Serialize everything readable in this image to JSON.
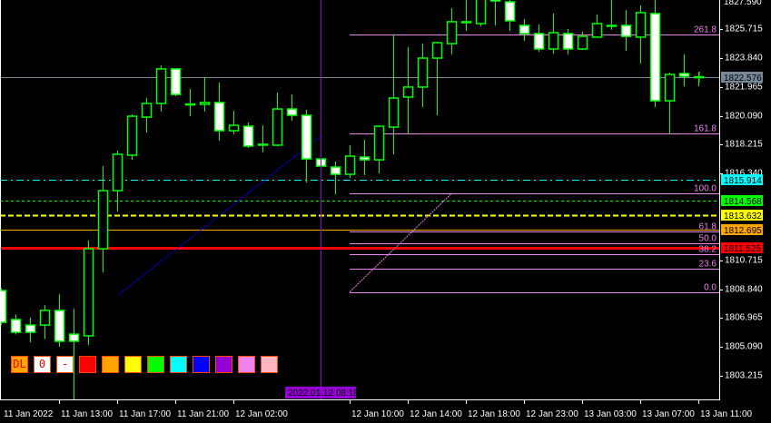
{
  "chart_data": {
    "type": "candlestick",
    "symbol_timeframe": "",
    "price_axis": {
      "top_label": "1827.590",
      "ticks": [
        1825.715,
        1823.84,
        1821.965,
        1820.09,
        1818.215,
        1816.34,
        1810.715,
        1808.84,
        1806.965,
        1805.09,
        1803.215
      ],
      "tick_labels": [
        "1825.715",
        "1823.840",
        "1821.965",
        "1820.090",
        "1818.215",
        "1816.340",
        "1810.715",
        "1808.840",
        "1806.965",
        "1805.090",
        "1803.215"
      ]
    },
    "time_axis": {
      "labels": [
        "11 Jan 2022",
        "11 Jan 13:00",
        "11 Jan 17:00",
        "11 Jan 21:00",
        "12 Jan 02:00",
        "12 Jan 10:00",
        "12 Jan 14:00",
        "12 Jan 18:00",
        "12 Jan 23:00",
        "13 Jan 03:00",
        "13 Jan 07:00",
        "13 Jan 11:00"
      ]
    },
    "candles": [
      {
        "o": 1808.75,
        "h": 1808.9,
        "l": 1806.5,
        "c": 1806.69
      },
      {
        "o": 1806.87,
        "h": 1807.2,
        "l": 1805.9,
        "c": 1806.04
      },
      {
        "o": 1806.51,
        "h": 1807.0,
        "l": 1805.4,
        "c": 1806.04
      },
      {
        "o": 1806.51,
        "h": 1807.8,
        "l": 1805.6,
        "c": 1807.46
      },
      {
        "o": 1807.46,
        "h": 1808.5,
        "l": 1805.1,
        "c": 1805.46
      },
      {
        "o": 1805.92,
        "h": 1807.57,
        "l": 1801.69,
        "c": 1805.46
      },
      {
        "o": 1805.81,
        "h": 1811.99,
        "l": 1805.22,
        "c": 1811.46
      },
      {
        "o": 1811.46,
        "h": 1816.82,
        "l": 1809.93,
        "c": 1815.23
      },
      {
        "o": 1815.23,
        "h": 1817.82,
        "l": 1813.88,
        "c": 1817.59
      },
      {
        "o": 1817.53,
        "h": 1820.18,
        "l": 1817.23,
        "c": 1820.06
      },
      {
        "o": 1820.0,
        "h": 1821.24,
        "l": 1819.0,
        "c": 1820.89
      },
      {
        "o": 1820.89,
        "h": 1823.36,
        "l": 1820.36,
        "c": 1823.13
      },
      {
        "o": 1823.13,
        "h": 1823.13,
        "l": 1821.36,
        "c": 1821.47
      },
      {
        "o": 1820.83,
        "h": 1821.83,
        "l": 1820.06,
        "c": 1820.85
      },
      {
        "o": 1820.83,
        "h": 1822.59,
        "l": 1820.36,
        "c": 1820.95
      },
      {
        "o": 1820.95,
        "h": 1822.24,
        "l": 1818.47,
        "c": 1819.12
      },
      {
        "o": 1819.12,
        "h": 1820.41,
        "l": 1818.88,
        "c": 1819.47
      },
      {
        "o": 1819.41,
        "h": 1819.65,
        "l": 1818.0,
        "c": 1818.12
      },
      {
        "o": 1818.24,
        "h": 1819.47,
        "l": 1817.71,
        "c": 1818.18
      },
      {
        "o": 1818.18,
        "h": 1821.59,
        "l": 1818.12,
        "c": 1820.53
      },
      {
        "o": 1820.53,
        "h": 1821.47,
        "l": 1819.77,
        "c": 1820.12
      },
      {
        "o": 1820.12,
        "h": 1820.47,
        "l": 1815.76,
        "c": 1817.29
      },
      {
        "o": 1817.29,
        "h": 1817.29,
        "l": 1816.82,
        "c": 1816.82
      },
      {
        "o": 1816.76,
        "h": 1817.12,
        "l": 1815.0,
        "c": 1816.29
      },
      {
        "o": 1816.29,
        "h": 1818.18,
        "l": 1816.06,
        "c": 1817.47
      },
      {
        "o": 1817.41,
        "h": 1818.53,
        "l": 1816.23,
        "c": 1817.23
      },
      {
        "o": 1817.23,
        "h": 1819.47,
        "l": 1816.35,
        "c": 1819.41
      },
      {
        "o": 1819.35,
        "h": 1825.36,
        "l": 1817.59,
        "c": 1821.24
      },
      {
        "o": 1821.3,
        "h": 1824.54,
        "l": 1818.88,
        "c": 1821.95
      },
      {
        "o": 1821.95,
        "h": 1824.77,
        "l": 1820.65,
        "c": 1823.83
      },
      {
        "o": 1823.83,
        "h": 1824.89,
        "l": 1820.12,
        "c": 1824.83
      },
      {
        "o": 1824.77,
        "h": 1827.07,
        "l": 1824.07,
        "c": 1826.19
      },
      {
        "o": 1826.13,
        "h": 1827.6,
        "l": 1825.6,
        "c": 1826.19
      },
      {
        "o": 1826.07,
        "h": 1827.9,
        "l": 1825.89,
        "c": 1827.7
      },
      {
        "o": 1827.65,
        "h": 1827.9,
        "l": 1825.95,
        "c": 1827.54
      },
      {
        "o": 1827.48,
        "h": 1827.6,
        "l": 1825.6,
        "c": 1826.25
      },
      {
        "o": 1825.95,
        "h": 1826.36,
        "l": 1824.95,
        "c": 1825.42
      },
      {
        "o": 1825.42,
        "h": 1826.01,
        "l": 1824.24,
        "c": 1824.42
      },
      {
        "o": 1824.42,
        "h": 1826.72,
        "l": 1824.12,
        "c": 1825.48
      },
      {
        "o": 1825.42,
        "h": 1825.72,
        "l": 1824.07,
        "c": 1824.42
      },
      {
        "o": 1824.42,
        "h": 1825.54,
        "l": 1824.36,
        "c": 1825.24
      },
      {
        "o": 1825.19,
        "h": 1826.66,
        "l": 1825.13,
        "c": 1826.07
      },
      {
        "o": 1825.95,
        "h": 1827.6,
        "l": 1825.66,
        "c": 1825.92
      },
      {
        "o": 1825.95,
        "h": 1826.95,
        "l": 1824.3,
        "c": 1825.24
      },
      {
        "o": 1825.19,
        "h": 1827.25,
        "l": 1823.48,
        "c": 1826.78
      },
      {
        "o": 1826.72,
        "h": 1827.6,
        "l": 1820.65,
        "c": 1821.06
      },
      {
        "o": 1821.06,
        "h": 1822.89,
        "l": 1818.88,
        "c": 1822.77
      },
      {
        "o": 1822.83,
        "h": 1824.07,
        "l": 1822.0,
        "c": 1822.65
      },
      {
        "o": 1822.62,
        "h": 1822.95,
        "l": 1822.0,
        "c": 1822.62
      }
    ],
    "levels": [
      {
        "price": 1822.576,
        "label": "1822.576",
        "color": "#778899",
        "text_color": "#000000",
        "style": "solid"
      },
      {
        "price": 1815.914,
        "label": "1815.914",
        "color": "#00ffff",
        "text_color": "#000000",
        "style": "dashdot"
      },
      {
        "price": 1814.568,
        "label": "1814.568",
        "color": "#00ff00",
        "text_color": "#000000",
        "style": "dot"
      },
      {
        "price": 1813.632,
        "label": "1813.632",
        "color": "#ffff00",
        "text_color": "#000000",
        "style": "dash"
      },
      {
        "price": 1812.695,
        "label": "1812.695",
        "color": "#ffa500",
        "text_color": "#000000",
        "style": "solid"
      },
      {
        "price": 1811.525,
        "label": "1811.525",
        "color": "#ff0000",
        "text_color": "#000000",
        "style": "thick"
      }
    ],
    "fibonacci": {
      "price_0": 1808.66,
      "price_100": 1815.03,
      "color": "#ee82ee",
      "levels": [
        {
          "ratio": 0.0,
          "label": "0.0"
        },
        {
          "ratio": 0.236,
          "label": "23.6"
        },
        {
          "ratio": 0.382,
          "label": "38.2"
        },
        {
          "ratio": 0.5,
          "label": "50.0"
        },
        {
          "ratio": 0.618,
          "label": "61.8"
        },
        {
          "ratio": 1.0,
          "label": "100.0"
        },
        {
          "ratio": 1.618,
          "label": "161.8"
        },
        {
          "ratio": 2.618,
          "label": "261.8"
        }
      ]
    },
    "trendline": {
      "start_price": 1808.46,
      "end_price": 1818.76,
      "color": "#0000ff"
    },
    "crosshair": {
      "time_label": "2022.01.12 08:18",
      "color": "#9400d3"
    },
    "candle_colors": {
      "outline": "#00ff00",
      "bull_fill": "#000000",
      "bear_fill": "#ffffff"
    }
  },
  "toolbar": {
    "buttons": [
      {
        "label": "DL",
        "bg": "#ffa500"
      },
      {
        "label": "0",
        "bg": "#ffffff"
      },
      {
        "label": "-",
        "bg": "#ffffff"
      },
      {
        "label": "",
        "bg": "#ff0000"
      },
      {
        "label": "",
        "bg": "#ffa500"
      },
      {
        "label": "",
        "bg": "#ffff00"
      },
      {
        "label": "",
        "bg": "#00ff00"
      },
      {
        "label": "",
        "bg": "#00ffff"
      },
      {
        "label": "",
        "bg": "#0000ff"
      },
      {
        "label": "",
        "bg": "#9400d3"
      },
      {
        "label": "",
        "bg": "#ee82ee"
      },
      {
        "label": "",
        "bg": "#ffb6c1"
      }
    ]
  }
}
